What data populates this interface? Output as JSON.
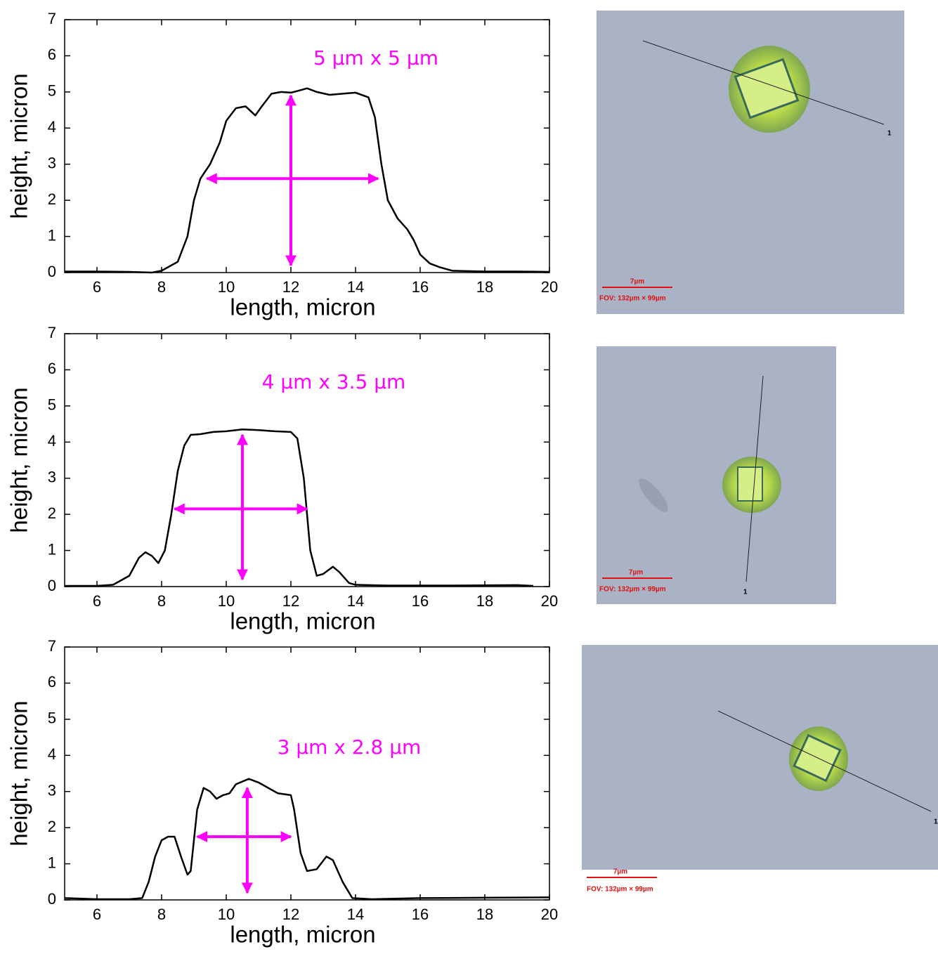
{
  "chart_data": [
    {
      "type": "line",
      "xlabel": "length, micron",
      "ylabel": "height, micron",
      "annotation": "5 µm x 5 µm",
      "xlim": [
        5,
        20
      ],
      "ylim": [
        0,
        7
      ],
      "xticks": [
        6,
        8,
        10,
        12,
        14,
        16,
        18,
        20
      ],
      "yticks": [
        0,
        1,
        2,
        3,
        4,
        5,
        6,
        7
      ],
      "color": "#000000",
      "arrow_color": "#ff00ff",
      "x": [
        5,
        6,
        7,
        7.7,
        8,
        8.5,
        8.8,
        9,
        9.2,
        9.5,
        9.8,
        10,
        10.3,
        10.6,
        10.9,
        11.1,
        11.4,
        11.7,
        12,
        12.3,
        12.5,
        12.8,
        13.2,
        13.6,
        14,
        14.4,
        14.6,
        14.8,
        15,
        15.3,
        15.6,
        15.8,
        16,
        16.3,
        16.6,
        17,
        18,
        19,
        20
      ],
      "values": [
        0.03,
        0.03,
        0.02,
        0.0,
        0.05,
        0.3,
        1.0,
        2.0,
        2.6,
        3.0,
        3.6,
        4.2,
        4.55,
        4.6,
        4.35,
        4.6,
        4.95,
        5.0,
        4.98,
        5.05,
        5.1,
        5.0,
        4.92,
        4.95,
        4.98,
        4.85,
        4.3,
        3.0,
        2.0,
        1.5,
        1.2,
        0.9,
        0.5,
        0.25,
        0.15,
        0.05,
        0.03,
        0.03,
        0.02
      ],
      "arrows": [
        {
          "x": [
            9.4,
            14.7
          ],
          "y": [
            2.6,
            2.6
          ]
        },
        {
          "x": [
            12,
            12
          ],
          "y": [
            0.2,
            4.9
          ]
        }
      ]
    },
    {
      "type": "line",
      "xlabel": "length, micron",
      "ylabel": "height, micron",
      "annotation": "4 µm x 3.5 µm",
      "xlim": [
        5,
        20
      ],
      "ylim": [
        0,
        7
      ],
      "xticks": [
        6,
        8,
        10,
        12,
        14,
        16,
        18,
        20
      ],
      "yticks": [
        0,
        1,
        2,
        3,
        4,
        5,
        6,
        7
      ],
      "color": "#000000",
      "arrow_color": "#ff00ff",
      "x": [
        5,
        6,
        6.5,
        7,
        7.3,
        7.5,
        7.7,
        7.9,
        8.1,
        8.3,
        8.5,
        8.7,
        8.9,
        9.2,
        9.6,
        10,
        10.5,
        11,
        11.5,
        12,
        12.2,
        12.4,
        12.5,
        12.6,
        12.8,
        13,
        13.3,
        13.5,
        13.8,
        14,
        15,
        17,
        19,
        19.5
      ],
      "values": [
        0.02,
        0.02,
        0.05,
        0.3,
        0.8,
        0.95,
        0.85,
        0.65,
        1.0,
        2.0,
        3.2,
        3.9,
        4.2,
        4.22,
        4.28,
        4.3,
        4.35,
        4.33,
        4.3,
        4.28,
        4.1,
        3.0,
        2.0,
        1.0,
        0.3,
        0.35,
        0.55,
        0.4,
        0.1,
        0.05,
        0.03,
        0.03,
        0.04,
        0.02
      ],
      "arrows": [
        {
          "x": [
            8.4,
            12.5
          ],
          "y": [
            2.15,
            2.15
          ]
        },
        {
          "x": [
            10.5,
            10.5
          ],
          "y": [
            0.2,
            4.2
          ]
        }
      ]
    },
    {
      "type": "line",
      "xlabel": "length, micron",
      "ylabel": "height, micron",
      "annotation": "3 µm x 2.8 µm",
      "xlim": [
        5,
        20
      ],
      "ylim": [
        0,
        7
      ],
      "xticks": [
        6,
        8,
        10,
        12,
        14,
        16,
        18,
        20
      ],
      "yticks": [
        0,
        1,
        2,
        3,
        4,
        5,
        6,
        7
      ],
      "color": "#000000",
      "arrow_color": "#ff00ff",
      "x": [
        5,
        6,
        7,
        7.4,
        7.6,
        7.8,
        8,
        8.2,
        8.4,
        8.6,
        8.8,
        8.9,
        9.1,
        9.3,
        9.5,
        9.7,
        9.9,
        10.1,
        10.3,
        10.7,
        11,
        11.3,
        11.6,
        12,
        12.1,
        12.3,
        12.5,
        12.8,
        13.1,
        13.3,
        13.6,
        13.9,
        14.5,
        16,
        18,
        20
      ],
      "values": [
        0.05,
        0.02,
        0.02,
        0.05,
        0.5,
        1.2,
        1.65,
        1.75,
        1.75,
        1.2,
        0.7,
        0.8,
        2.5,
        3.1,
        3.0,
        2.8,
        2.9,
        2.95,
        3.2,
        3.35,
        3.25,
        3.1,
        2.95,
        2.9,
        2.5,
        1.3,
        0.8,
        0.85,
        1.2,
        1.1,
        0.5,
        0.05,
        0.02,
        0.05,
        0.06,
        0.07
      ],
      "arrows": [
        {
          "x": [
            9.1,
            12
          ],
          "y": [
            1.75,
            1.75
          ]
        },
        {
          "x": [
            10.65,
            10.65
          ],
          "y": [
            0.2,
            3.1
          ]
        }
      ]
    }
  ],
  "images": [
    {
      "scale_label": "7µm",
      "fov": "FOV: 132µm × 99µm",
      "line_end": "1"
    },
    {
      "scale_label": "7µm",
      "fov": "FOV: 132µm × 99µm",
      "line_end": "1"
    },
    {
      "scale_label": "7µm",
      "fov": "FOV: 132µm × 99µm",
      "line_end": "1"
    }
  ]
}
